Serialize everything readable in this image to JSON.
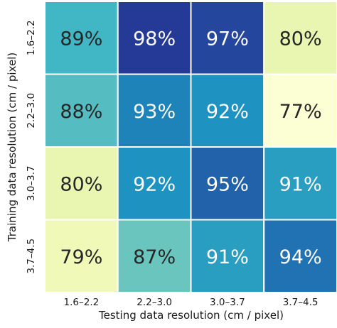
{
  "chart_data": {
    "type": "heatmap",
    "title": "",
    "xlabel": "Testing data resolution (cm / pixel)",
    "ylabel": "Training data resolution (cm / pixel)",
    "x_categories": [
      "1.6–2.2",
      "2.2–3.0",
      "3.0–3.7",
      "3.7–4.5"
    ],
    "y_categories": [
      "1.6–2.2",
      "2.2–3.0",
      "3.0–3.7",
      "3.7–4.5"
    ],
    "values": [
      [
        89,
        98,
        97,
        80
      ],
      [
        88,
        93,
        92,
        77
      ],
      [
        80,
        92,
        95,
        91
      ],
      [
        79,
        87,
        91,
        94
      ]
    ],
    "value_format": "percent",
    "colormap": "YlGnBu",
    "color_min": 77,
    "color_max": 98,
    "colors": {
      "gridline": "#ffffff",
      "text_dark": "#262626",
      "text_light": "#ffffff"
    }
  }
}
